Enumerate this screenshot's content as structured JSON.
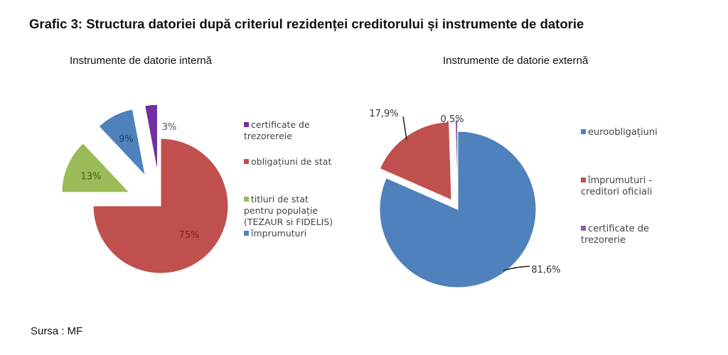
{
  "title": "Grafic 3: Structura datoriei după criteriul rezidenței creditorului și instrumente de datorie",
  "source": "Sursa : MF",
  "chart_data": [
    {
      "type": "pie",
      "title": "Instrumente de datorie internă",
      "slices": [
        {
          "name": "obligațiuni de stat",
          "value": 75,
          "label": "75%",
          "color": "#c0504d"
        },
        {
          "name": "titluri de stat pentru populație (TEZAUR si FIDELIS)",
          "value": 13,
          "label": "13%",
          "color": "#9bbb59"
        },
        {
          "name": "împrumuturi",
          "value": 9,
          "label": "9%",
          "color": "#4f81bd"
        },
        {
          "name": "certificate de trezorereie",
          "value": 3,
          "label": "3%",
          "color": "#7030a0"
        }
      ],
      "legend": [
        "certificate de trezorereie",
        "obligațiuni de stat",
        "titluri de stat pentru populație (TEZAUR si FIDELIS)",
        "împrumuturi"
      ],
      "legend_colors": [
        "#7030a0",
        "#c0504d",
        "#9bbb59",
        "#4f81bd"
      ],
      "legend_placement": "right"
    },
    {
      "type": "pie",
      "title": "Instrumente de datorie externă",
      "slices": [
        {
          "name": "euroobligațiuni",
          "value": 81.6,
          "label": "81,6%",
          "color": "#4f81bd"
        },
        {
          "name": "împrumuturi - creditori oficiali",
          "value": 17.9,
          "label": "17,9%",
          "color": "#c0504d"
        },
        {
          "name": "certificate de trezorerie",
          "value": 0.5,
          "label": "0,5%",
          "color": "#8064a2"
        }
      ],
      "legend": [
        "euroobligațiuni",
        "împrumuturi - creditori oficiali",
        "certificate de trezorerie"
      ],
      "legend_colors": [
        "#4f81bd",
        "#c0504d",
        "#8064a2"
      ],
      "legend_placement": "right"
    }
  ]
}
